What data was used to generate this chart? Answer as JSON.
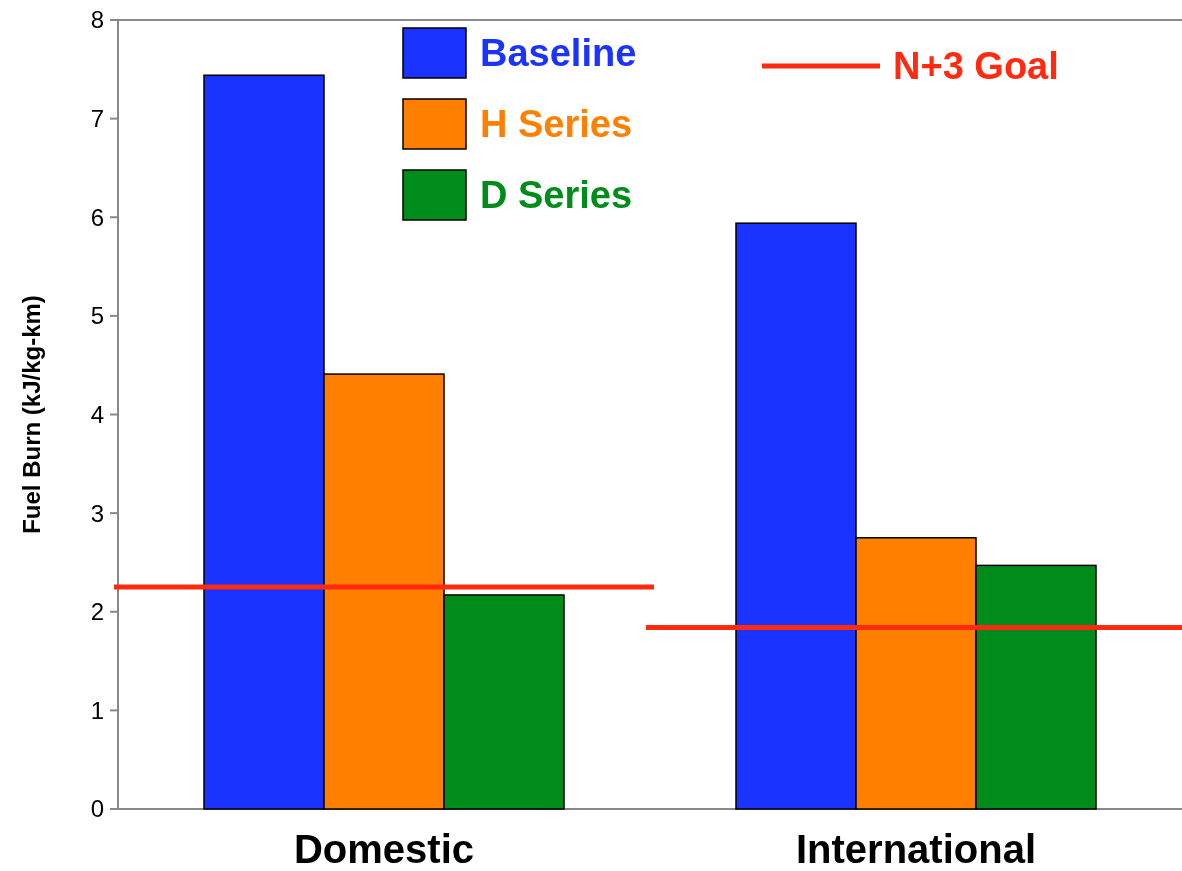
{
  "chart_data": {
    "type": "bar",
    "ylabel": "Fuel Burn (kJ/kg-km)",
    "categories": [
      "Domestic",
      "International"
    ],
    "series": [
      {
        "name": "Baseline",
        "color": "#1a33ff",
        "values": [
          7.44,
          5.94
        ]
      },
      {
        "name": "H Series",
        "color": "#ff7f00",
        "values": [
          4.41,
          2.75
        ]
      },
      {
        "name": "D Series",
        "color": "#008c1a",
        "values": [
          2.17,
          2.47
        ]
      }
    ],
    "ref_lines": [
      {
        "axis": "y",
        "value": 2.25,
        "label": "N+3 Goal",
        "color": "#ff2a10"
      },
      {
        "axis": "y",
        "value": 1.84,
        "color": "#ff2a10"
      }
    ],
    "ylim": [
      0,
      8
    ],
    "yticks": [
      0,
      1,
      2,
      3,
      4,
      5,
      6,
      7,
      8
    ],
    "grid": false,
    "legend": "top"
  }
}
